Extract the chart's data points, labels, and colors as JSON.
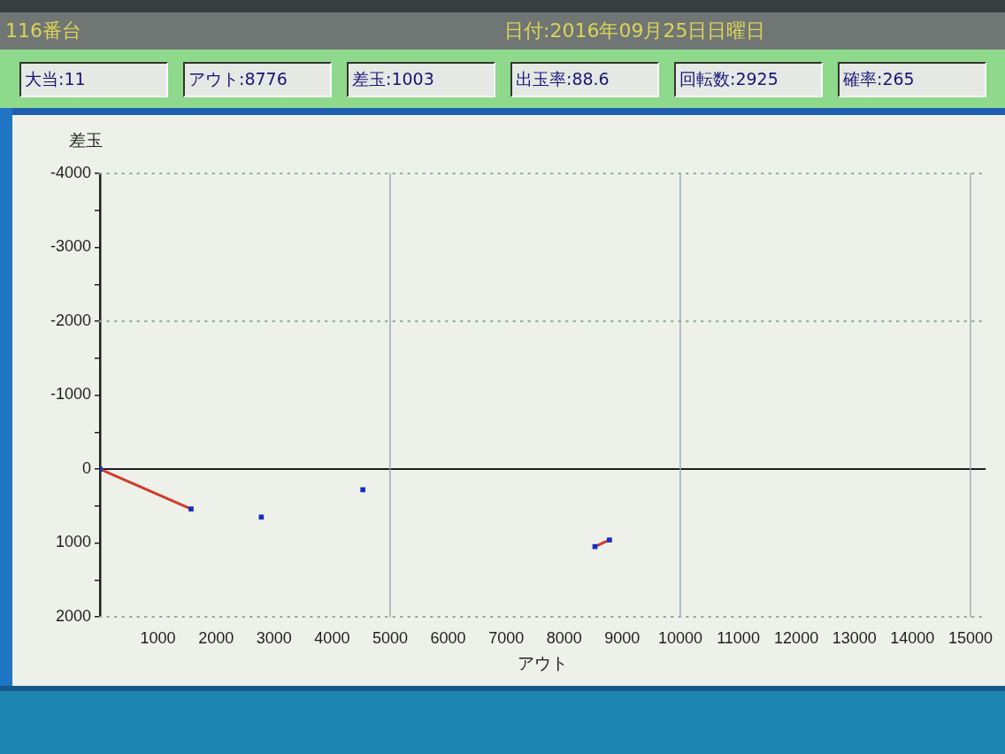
{
  "chart_data": {
    "type": "scatter",
    "title": "116番台",
    "subtitle": "日付:2016年09月25日日曜日",
    "annotations": [
      "大当:11",
      "アウト:8776",
      "差玉:1003",
      "出玉率:88.6",
      "回転数:2925",
      "確率:265"
    ],
    "xlabel": "アウト",
    "ylabel": "差玉",
    "x": [
      0,
      1570,
      2780,
      4530,
      8530,
      8780
    ],
    "series": [
      {
        "type": "line",
        "color": "#d43a2a",
        "values": [
          0,
          540,
          null,
          null,
          1050,
          960
        ],
        "marker": "none",
        "line_style": "solid"
      },
      {
        "type": "scatter",
        "color": "#1230c8",
        "values": [
          0,
          540,
          650,
          280,
          1050,
          960
        ],
        "marker": "square"
      }
    ],
    "xlim": [
      0,
      15250
    ],
    "xticks": [
      1000,
      2000,
      3000,
      4000,
      5000,
      6000,
      7000,
      8000,
      9000,
      10000,
      11000,
      12000,
      13000,
      14000,
      15000
    ],
    "ylim": [
      2000,
      -4000
    ],
    "yticks": [
      -4000,
      {
        "value": -3500,
        "label": null
      },
      -3000,
      {
        "value": -2500,
        "label": null
      },
      -2000,
      {
        "value": -1500,
        "label": null
      },
      -1000,
      {
        "value": -500,
        "label": null
      },
      0,
      {
        "value": 500,
        "label": null
      },
      1000,
      {
        "value": 1500,
        "label": null
      },
      2000
    ],
    "ref_lines": [
      {
        "axis": "y",
        "value": -4000,
        "color": "#8fae8c",
        "line_style": "dotted"
      },
      {
        "axis": "y",
        "value": -2000,
        "color": "#8fae8c",
        "line_style": "dotted"
      },
      {
        "axis": "y",
        "value": 2000,
        "color": "#8fae8c",
        "line_style": "dotted"
      },
      {
        "axis": "y",
        "value": 0,
        "color": "#1e1e1e",
        "line_style": "solid"
      },
      {
        "axis": "x",
        "value": 5000,
        "color": "#9aa9b2",
        "line_style": "solid"
      },
      {
        "axis": "x",
        "value": 10000,
        "color": "#9aa9b2",
        "line_style": "solid"
      },
      {
        "axis": "x",
        "value": 15000,
        "color": "#9aa9b2",
        "line_style": "solid"
      }
    ],
    "grid": false,
    "legend": false
  }
}
